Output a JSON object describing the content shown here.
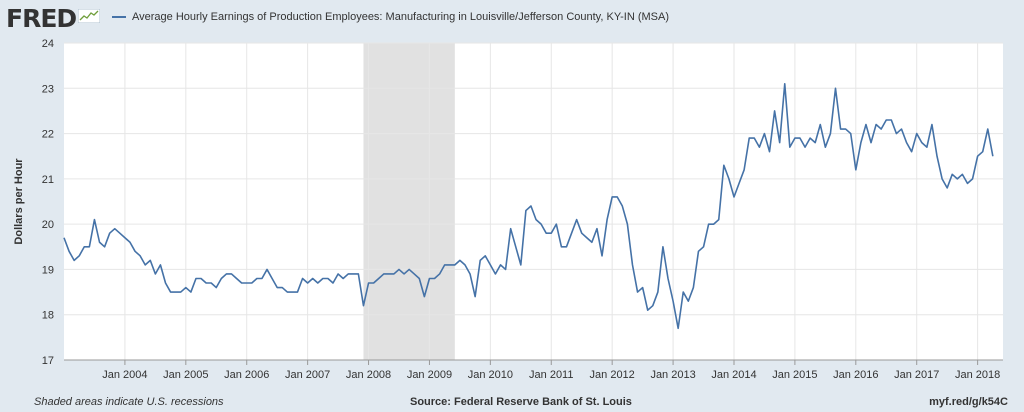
{
  "header": {
    "logo": "FRED",
    "legend_label": "Average Hourly Earnings of Production Employees: Manufacturing in Louisville/Jefferson County, KY-IN (MSA)",
    "series_color": "#4572a7"
  },
  "footer": {
    "note": "Shaded areas indicate U.S. recessions",
    "source": "Source: Federal Reserve Bank of St. Louis",
    "link": "myf.red/g/k54C"
  },
  "chart_data": {
    "type": "line",
    "ylabel": "Dollars per Hour",
    "ylim": [
      17,
      24
    ],
    "yticks": [
      17,
      18,
      19,
      20,
      21,
      22,
      23,
      24
    ],
    "xlim": [
      "2003-01-01",
      "2018-06-01"
    ],
    "xticks": [
      "Jan 2004",
      "Jan 2005",
      "Jan 2006",
      "Jan 2007",
      "Jan 2008",
      "Jan 2009",
      "Jan 2010",
      "Jan 2011",
      "Jan 2012",
      "Jan 2013",
      "Jan 2014",
      "Jan 2015",
      "Jan 2016",
      "Jan 2017",
      "Jan 2018"
    ],
    "grid": true,
    "recessions": [
      [
        "2007-12-01",
        "2009-06-01"
      ]
    ],
    "series": [
      {
        "start": "2003-01",
        "frequency": "monthly",
        "values": [
          19.7,
          19.4,
          19.2,
          19.3,
          19.5,
          19.5,
          20.1,
          19.6,
          19.5,
          19.8,
          19.9,
          19.8,
          19.7,
          19.6,
          19.4,
          19.3,
          19.1,
          19.2,
          18.9,
          19.1,
          18.7,
          18.5,
          18.5,
          18.5,
          18.6,
          18.5,
          18.8,
          18.8,
          18.7,
          18.7,
          18.6,
          18.8,
          18.9,
          18.9,
          18.8,
          18.7,
          18.7,
          18.7,
          18.8,
          18.8,
          19.0,
          18.8,
          18.6,
          18.6,
          18.5,
          18.5,
          18.5,
          18.8,
          18.7,
          18.8,
          18.7,
          18.8,
          18.8,
          18.7,
          18.9,
          18.8,
          18.9,
          18.9,
          18.9,
          18.2,
          18.7,
          18.7,
          18.8,
          18.9,
          18.9,
          18.9,
          19.0,
          18.9,
          19.0,
          18.9,
          18.8,
          18.4,
          18.8,
          18.8,
          18.9,
          19.1,
          19.1,
          19.1,
          19.2,
          19.1,
          18.9,
          18.4,
          19.2,
          19.3,
          19.1,
          18.9,
          19.1,
          19.0,
          19.9,
          19.5,
          19.1,
          20.3,
          20.4,
          20.1,
          20.0,
          19.8,
          19.8,
          20.0,
          19.5,
          19.5,
          19.8,
          20.1,
          19.8,
          19.7,
          19.6,
          19.9,
          19.3,
          20.1,
          20.6,
          20.6,
          20.4,
          20.0,
          19.1,
          18.5,
          18.6,
          18.1,
          18.2,
          18.5,
          19.5,
          18.8,
          18.3,
          17.7,
          18.5,
          18.3,
          18.6,
          19.4,
          19.5,
          20.0,
          20.0,
          20.1,
          21.3,
          21.0,
          20.6,
          20.9,
          21.2,
          21.9,
          21.9,
          21.7,
          22.0,
          21.6,
          22.5,
          21.8,
          23.1,
          21.7,
          21.9,
          21.9,
          21.7,
          21.9,
          21.8,
          22.2,
          21.7,
          22.0,
          23.0,
          22.1,
          22.1,
          22.0,
          21.2,
          21.8,
          22.2,
          21.8,
          22.2,
          22.1,
          22.3,
          22.3,
          22.0,
          22.1,
          21.8,
          21.6,
          22.0,
          21.8,
          21.7,
          22.2,
          21.5,
          21.0,
          20.8,
          21.1,
          21.0,
          21.1,
          20.9,
          21.0,
          21.5,
          21.6,
          22.1,
          21.5
        ]
      }
    ]
  }
}
